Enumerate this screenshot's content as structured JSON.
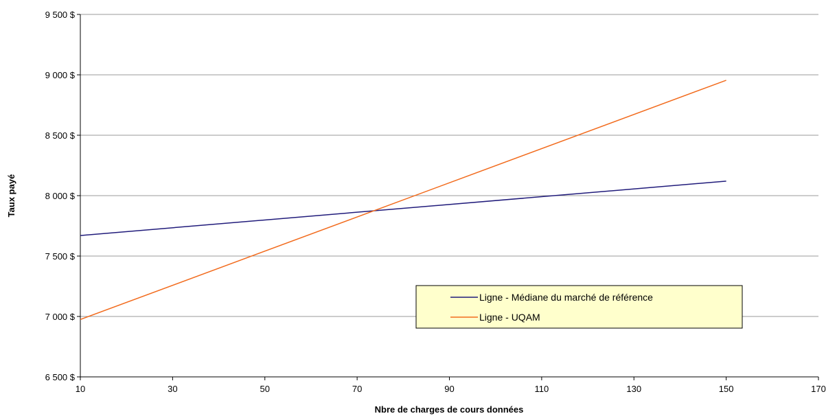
{
  "chart_data": {
    "type": "line",
    "xlabel": "Nbre de charges de cours données",
    "ylabel": "Taux payé",
    "xlim": [
      10,
      170
    ],
    "ylim": [
      6500,
      9500
    ],
    "x_ticks": [
      10,
      30,
      50,
      70,
      90,
      110,
      130,
      150,
      170
    ],
    "x_tick_labels": [
      "10",
      "30",
      "50",
      "70",
      "90",
      "110",
      "130",
      "150",
      "170"
    ],
    "y_ticks": [
      6500,
      7000,
      7500,
      8000,
      8500,
      9000,
      9500
    ],
    "y_tick_labels": [
      "6 500 $",
      "7 000 $",
      "7 500 $",
      "8 000 $",
      "8 500 $",
      "9 000 $",
      "9 500 $"
    ],
    "grid": {
      "horizontal": true,
      "vertical": false
    },
    "legend": "inside-right",
    "series": [
      {
        "name": "Ligne - Médiane du marché de référence",
        "color": "#1f1a7a",
        "x": [
          10,
          150
        ],
        "y": [
          7670,
          8120
        ]
      },
      {
        "name": "Ligne - UQAM",
        "color": "#f26b1d",
        "x": [
          10,
          150
        ],
        "y": [
          6975,
          8955
        ]
      }
    ],
    "legend_bg": "#ffffcc"
  }
}
